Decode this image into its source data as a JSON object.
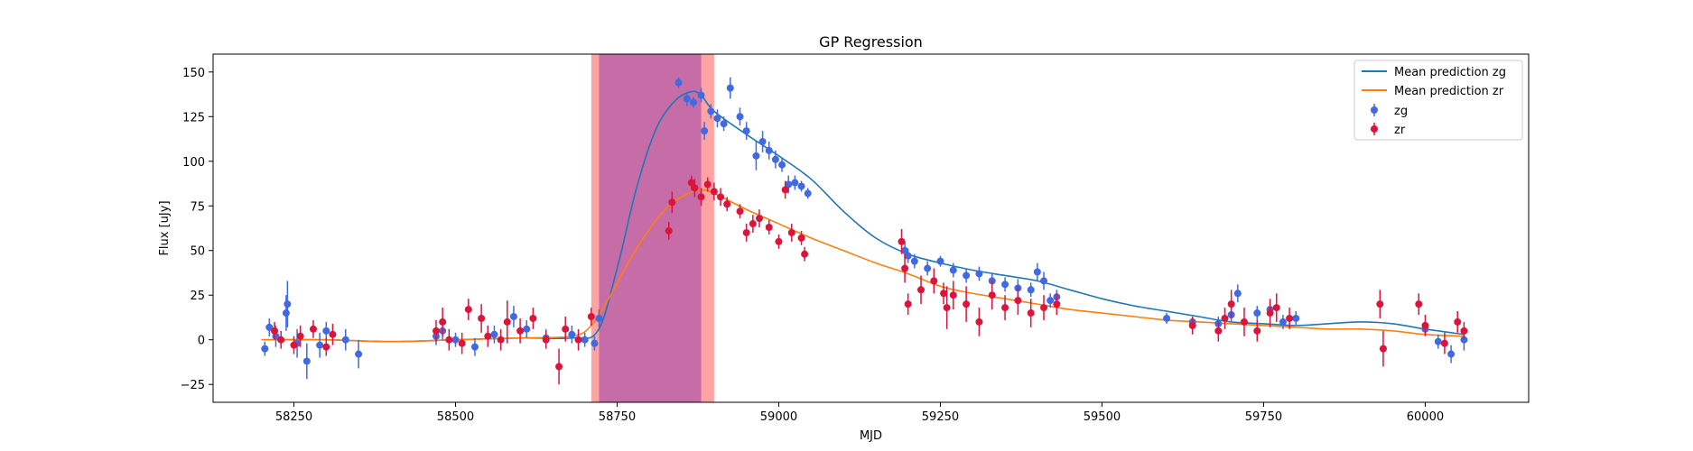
{
  "chart_data": {
    "type": "scatter",
    "title": "GP Regression",
    "xlabel": "MJD",
    "ylabel": "Flux [uJy]",
    "xlim": [
      58125,
      60160
    ],
    "ylim": [
      -35,
      160
    ],
    "x_ticks": [
      58250,
      58500,
      58750,
      59000,
      59250,
      59500,
      59750,
      60000
    ],
    "y_ticks": [
      -25,
      0,
      25,
      50,
      75,
      100,
      125,
      150
    ],
    "grid": false,
    "legend_position": "top-right",
    "shaded_regions": [
      {
        "x0": 58710,
        "x1": 58900,
        "color": "#ff9999"
      },
      {
        "x0": 58722,
        "x1": 58880,
        "color": "#c066a6"
      }
    ],
    "series": [
      {
        "name": "Mean prediction zg",
        "kind": "line",
        "color": "#1f77b4",
        "x": [
          58200,
          58300,
          58400,
          58500,
          58600,
          58680,
          58720,
          58750,
          58780,
          58810,
          58840,
          58865,
          58880,
          58900,
          58950,
          59000,
          59050,
          59100,
          59150,
          59200,
          59250,
          59300,
          59350,
          59400,
          59450,
          59500,
          59550,
          59600,
          59650,
          59700,
          59750,
          59800,
          59850,
          59900,
          59950,
          60000,
          60060
        ],
        "y": [
          0,
          0,
          -1,
          0,
          1,
          1,
          5,
          40,
          85,
          118,
          134,
          139,
          137,
          128,
          115,
          103,
          90,
          72,
          57,
          48,
          43,
          39,
          36,
          33,
          28,
          23,
          19,
          16,
          13,
          10,
          9,
          8,
          9,
          10,
          9,
          6,
          3
        ]
      },
      {
        "name": "Mean prediction zr",
        "kind": "line",
        "color": "#ff7f0e",
        "x": [
          58200,
          58300,
          58400,
          58500,
          58600,
          58680,
          58710,
          58740,
          58770,
          58800,
          58830,
          58860,
          58880,
          58900,
          58950,
          59000,
          59050,
          59100,
          59150,
          59200,
          59250,
          59300,
          59350,
          59400,
          59450,
          59500,
          59550,
          59600,
          59650,
          59700,
          59750,
          59800,
          59850,
          59900,
          59950,
          60000,
          60060
        ],
        "y": [
          0,
          0,
          -1,
          0,
          1,
          2,
          8,
          25,
          45,
          62,
          75,
          82,
          84,
          82,
          73,
          65,
          57,
          50,
          43,
          37,
          30,
          26,
          23,
          20,
          17,
          15,
          13,
          11,
          10,
          9,
          8,
          7,
          6,
          6,
          5,
          3,
          2
        ]
      },
      {
        "name": "zg",
        "kind": "errorbar",
        "color": "#4169e1",
        "x": [
          58205,
          58212,
          58222,
          58238,
          58240,
          58255,
          58270,
          58290,
          58300,
          58330,
          58350,
          58470,
          58480,
          58500,
          58530,
          58560,
          58590,
          58610,
          58640,
          58680,
          58700,
          58715,
          58722,
          58845,
          58858,
          58868,
          58880,
          58885,
          58895,
          58905,
          58915,
          58925,
          58940,
          58950,
          58965,
          58975,
          58985,
          58995,
          59005,
          59015,
          59025,
          59035,
          59045,
          59195,
          59200,
          59210,
          59230,
          59250,
          59270,
          59290,
          59310,
          59330,
          59350,
          59370,
          59390,
          59400,
          59410,
          59420,
          59430,
          59600,
          59640,
          59680,
          59700,
          59710,
          59740,
          59760,
          59780,
          59800,
          60000,
          60020,
          60040,
          60060
        ],
        "y": [
          -5,
          7,
          2,
          15,
          20,
          -2,
          -12,
          -3,
          5,
          0,
          -8,
          2,
          5,
          0,
          -4,
          3,
          13,
          6,
          1,
          3,
          0,
          -2,
          12,
          144,
          135,
          133,
          137,
          117,
          128,
          124,
          121,
          141,
          125,
          117,
          103,
          111,
          106,
          101,
          98,
          87,
          88,
          86,
          82,
          50,
          47,
          44,
          40,
          44,
          39,
          36,
          37,
          33,
          31,
          29,
          28,
          38,
          33,
          22,
          24,
          12,
          10,
          9,
          14,
          26,
          15,
          17,
          10,
          12,
          6,
          -1,
          -8,
          0
        ],
        "err": [
          4,
          5,
          6,
          10,
          13,
          8,
          10,
          7,
          5,
          6,
          8,
          5,
          5,
          4,
          5,
          5,
          6,
          5,
          5,
          5,
          4,
          4,
          5,
          3,
          4,
          3,
          4,
          5,
          4,
          5,
          4,
          6,
          5,
          5,
          8,
          6,
          5,
          5,
          4,
          5,
          4,
          3,
          3,
          5,
          4,
          4,
          4,
          3,
          4,
          4,
          4,
          4,
          4,
          5,
          4,
          5,
          5,
          4,
          4,
          3,
          3,
          4,
          4,
          5,
          4,
          4,
          4,
          4,
          3,
          4,
          5,
          6
        ]
      },
      {
        "name": "zr",
        "kind": "errorbar",
        "color": "#dc143c",
        "x": [
          58220,
          58230,
          58250,
          58260,
          58280,
          58300,
          58310,
          58470,
          58480,
          58490,
          58510,
          58520,
          58540,
          58550,
          58570,
          58580,
          58600,
          58620,
          58640,
          58660,
          58670,
          58690,
          58710,
          58830,
          58835,
          58865,
          58870,
          58880,
          58890,
          58900,
          58910,
          58920,
          58940,
          58950,
          58960,
          58970,
          58985,
          59000,
          59010,
          59020,
          59035,
          59040,
          59190,
          59195,
          59200,
          59220,
          59240,
          59255,
          59260,
          59270,
          59290,
          59310,
          59330,
          59350,
          59370,
          59390,
          59410,
          59430,
          59640,
          59680,
          59690,
          59700,
          59720,
          59740,
          59760,
          59770,
          59790,
          59930,
          59935,
          59990,
          60000,
          60030,
          60050,
          60060
        ],
        "y": [
          5,
          0,
          -3,
          2,
          6,
          -4,
          3,
          5,
          10,
          0,
          -2,
          17,
          12,
          2,
          0,
          10,
          5,
          12,
          0,
          -15,
          6,
          0,
          13,
          61,
          77,
          88,
          85,
          80,
          87,
          83,
          80,
          76,
          72,
          60,
          65,
          68,
          63,
          55,
          84,
          60,
          57,
          48,
          55,
          40,
          20,
          28,
          33,
          26,
          18,
          25,
          20,
          10,
          25,
          18,
          22,
          15,
          18,
          20,
          8,
          5,
          12,
          20,
          10,
          5,
          15,
          18,
          12,
          20,
          -5,
          20,
          8,
          -2,
          10,
          5
        ],
        "err": [
          5,
          5,
          5,
          6,
          5,
          5,
          6,
          6,
          8,
          6,
          6,
          6,
          8,
          6,
          6,
          12,
          7,
          6,
          5,
          10,
          7,
          6,
          5,
          5,
          6,
          4,
          5,
          5,
          4,
          5,
          5,
          4,
          4,
          5,
          5,
          5,
          4,
          4,
          5,
          5,
          4,
          4,
          7,
          8,
          6,
          8,
          7,
          6,
          12,
          8,
          10,
          8,
          8,
          7,
          8,
          8,
          7,
          6,
          5,
          6,
          6,
          8,
          8,
          6,
          8,
          8,
          6,
          8,
          10,
          6,
          6,
          6,
          6,
          5
        ]
      }
    ]
  }
}
